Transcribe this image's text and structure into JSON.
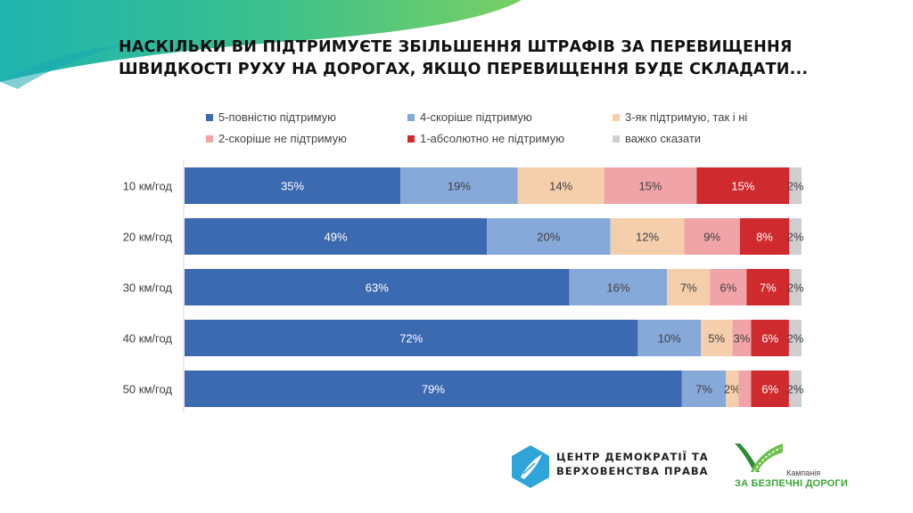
{
  "title_line1": "НАСКІЛЬКИ ВИ ПІДТРИМУЄТЕ ЗБІЛЬШЕННЯ ШТРАФІВ ЗА ПЕРЕВИЩЕННЯ",
  "title_line2": "ШВИДКОСТІ РУХУ НА ДОРОГАХ, ЯКЩО ПЕРЕВИЩЕННЯ БУДЕ СКЛАДАТИ...",
  "logos": {
    "cdp_line1": "ЦЕНТР ДЕМОКРАТІЇ ТА",
    "cdp_line2": "ВЕРХОВЕНСТВА ПРАВА",
    "road_small": "Кампанія",
    "road_main": "ЗА БЕЗПЕЧНІ ДОРОГИ"
  },
  "chart_data": {
    "type": "bar",
    "orientation": "horizontal",
    "stacked": true,
    "percent_stacked": true,
    "categories": [
      "10 км/год",
      "20 км/год",
      "30 км/год",
      "40 км/год",
      "50 км/год"
    ],
    "series": [
      {
        "name": "5-повністю підтримую",
        "color": "#3c6ab1",
        "values": [
          35,
          49,
          63,
          72,
          79
        ],
        "labels": [
          "35%",
          "49%",
          "63%",
          "72%",
          "79%"
        ]
      },
      {
        "name": "4-скоріше підтримую",
        "color": "#86a9da",
        "values": [
          19,
          20,
          16,
          10,
          7
        ],
        "labels": [
          "19%",
          "20%",
          "16%",
          "10%",
          "7%"
        ]
      },
      {
        "name": "3-як підтримую, так і ні",
        "color": "#f5ceab",
        "values": [
          14,
          12,
          7,
          5,
          2
        ],
        "labels": [
          "14%",
          "12%",
          "7%",
          "5%",
          "2%"
        ]
      },
      {
        "name": "2-скоріше не підтримую",
        "color": "#f1a4a7",
        "values": [
          15,
          9,
          6,
          3,
          2
        ],
        "labels": [
          "15%",
          "9%",
          "6%",
          "3%",
          ""
        ]
      },
      {
        "name": "1-абсолютно не підтримую",
        "color": "#cf2a2e",
        "values": [
          15,
          8,
          7,
          6,
          6
        ],
        "labels": [
          "15%",
          "8%",
          "7%",
          "6%",
          "6%"
        ]
      },
      {
        "name": "важко сказати",
        "color": "#cfcfcf",
        "values": [
          2,
          2,
          2,
          2,
          2
        ],
        "labels": [
          "2%",
          "2%",
          "2%",
          "2%",
          "2%"
        ]
      }
    ],
    "legend_position": "top",
    "grid": false
  }
}
